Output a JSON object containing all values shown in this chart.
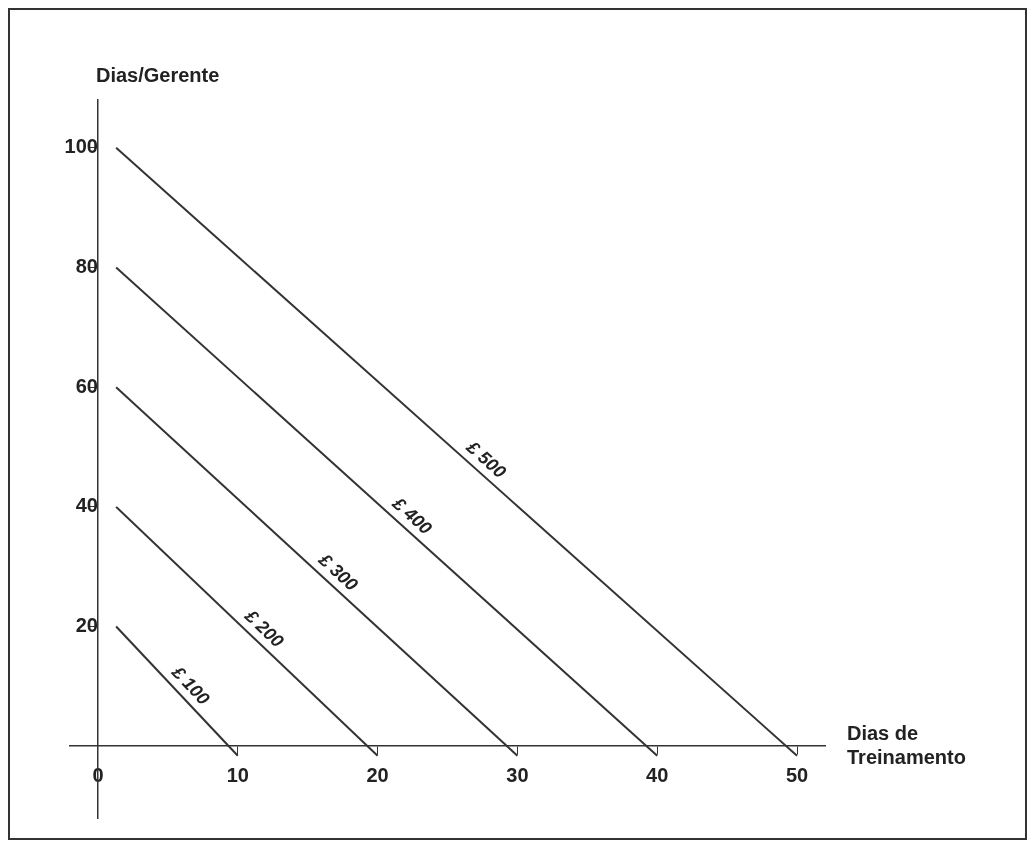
{
  "chart_data": {
    "type": "line",
    "xlabel": "Dias de Treinamento",
    "ylabel": "Dias/Gerente",
    "xlim": [
      -2,
      52
    ],
    "ylim": [
      -12,
      108
    ],
    "xticks": [
      0,
      10,
      20,
      30,
      40,
      50
    ],
    "yticks": [
      20,
      40,
      60,
      80,
      100
    ],
    "grid": false,
    "legend": false,
    "marker": "none",
    "line_style": "solid",
    "series": [
      {
        "name": "£ 100",
        "color": "#333333",
        "x": [
          1.3,
          10
        ],
        "values": [
          20,
          -1.6
        ]
      },
      {
        "name": "£ 200",
        "color": "#333333",
        "x": [
          1.3,
          20
        ],
        "values": [
          40,
          -1.6
        ]
      },
      {
        "name": "£ 300",
        "color": "#333333",
        "x": [
          1.3,
          30
        ],
        "values": [
          60,
          -1.6
        ]
      },
      {
        "name": "£ 400",
        "color": "#333333",
        "x": [
          1.3,
          40
        ],
        "values": [
          80,
          -1.6
        ]
      },
      {
        "name": "£ 500",
        "color": "#333333",
        "x": [
          1.3,
          50
        ],
        "values": [
          100,
          -1.6
        ]
      }
    ]
  }
}
